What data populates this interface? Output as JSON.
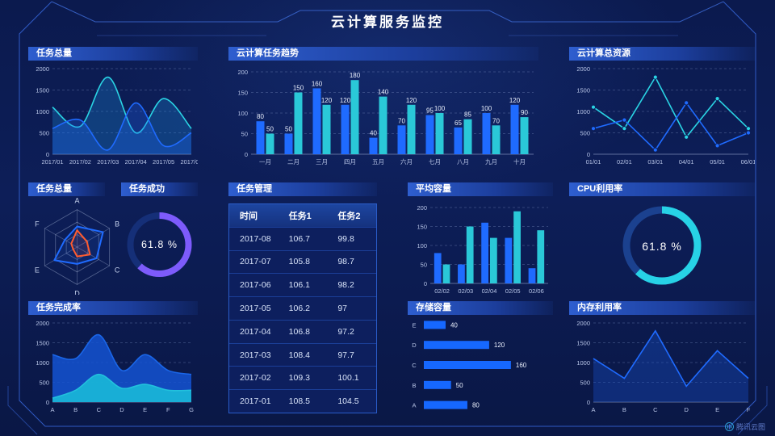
{
  "header": {
    "title": "云计算服务监控"
  },
  "watermark": {
    "text": "腾讯云图"
  },
  "colors": {
    "background": "#0b1a4e",
    "accent_blue": "#1f6bff",
    "accent_cyan": "#2ac8d8",
    "accent_purple": "#7d5bfb",
    "accent_orange": "#ff5b2e"
  },
  "table": {
    "title": "任务管理",
    "headers": [
      "时间",
      "任务1",
      "任务2"
    ],
    "rows": [
      [
        "2017-08",
        "106.7",
        "99.8"
      ],
      [
        "2017-07",
        "105.8",
        "98.7"
      ],
      [
        "2017-06",
        "106.1",
        "98.2"
      ],
      [
        "2017-05",
        "106.2",
        "97"
      ],
      [
        "2017-04",
        "106.8",
        "97.2"
      ],
      [
        "2017-03",
        "108.4",
        "97.7"
      ],
      [
        "2017-02",
        "109.3",
        "100.1"
      ],
      [
        "2017-01",
        "108.5",
        "104.5"
      ]
    ]
  },
  "chart_data": [
    {
      "id": "task_total_area",
      "type": "area",
      "title": "任务总量",
      "smooth": true,
      "x": [
        "2017/01",
        "2017/02",
        "2017/03",
        "2017/04",
        "2017/05",
        "2017/06"
      ],
      "ymax": 2000,
      "yticks": [
        0,
        500,
        1000,
        1500,
        2000
      ],
      "grid": true,
      "legend": "none",
      "series": [
        {
          "name": "series-cyan",
          "color": "#2ad4e4",
          "fill": "rgba(26,140,220,0.30)",
          "values": [
            1100,
            650,
            1800,
            500,
            1300,
            600
          ]
        },
        {
          "name": "series-blue",
          "color": "#1f6bff",
          "fill": "rgba(31,107,255,0.28)",
          "values": [
            600,
            800,
            100,
            1200,
            200,
            500
          ]
        }
      ]
    },
    {
      "id": "task_trend",
      "type": "bar",
      "title": "云计算任务趋势",
      "labels": true,
      "categories": [
        "一月",
        "二月",
        "三月",
        "四月",
        "五月",
        "六月",
        "七月",
        "八月",
        "九月",
        "十月"
      ],
      "ymax": 200,
      "yticks": [
        0,
        50,
        100,
        150,
        200
      ],
      "grid": true,
      "legend": "none",
      "series": [
        {
          "name": "series-blue",
          "color": "#1f6bff",
          "values": [
            80,
            50,
            160,
            120,
            40,
            70,
            95,
            65,
            100,
            120
          ]
        },
        {
          "name": "series-cyan",
          "color": "#2ac8d8",
          "values": [
            50,
            150,
            120,
            180,
            140,
            120,
            100,
            85,
            70,
            90
          ]
        }
      ]
    },
    {
      "id": "total_resources",
      "type": "line",
      "title": "云计算总资源",
      "markers": true,
      "x": [
        "01/01",
        "02/01",
        "03/01",
        "04/01",
        "05/01",
        "06/01"
      ],
      "ymax": 2000,
      "yticks": [
        0,
        500,
        1000,
        1500,
        2000
      ],
      "grid": true,
      "legend": "none",
      "series": [
        {
          "name": "series-cyan",
          "color": "#2ad4e4",
          "values": [
            1100,
            600,
            1800,
            400,
            1300,
            600
          ]
        },
        {
          "name": "series-blue",
          "color": "#1f6bff",
          "values": [
            600,
            800,
            100,
            1200,
            200,
            500
          ]
        }
      ]
    },
    {
      "id": "task_radar",
      "type": "radar",
      "title": "任务总量",
      "axes": [
        "A",
        "B",
        "C",
        "D",
        "E",
        "F"
      ],
      "max": 100,
      "series": [
        {
          "name": "series-blue",
          "color": "#1f6bff",
          "fill": "rgba(31,107,255,0.12)",
          "values": [
            55,
            80,
            60,
            45,
            70,
            38
          ]
        },
        {
          "name": "series-orange",
          "color": "#ff5b2e",
          "fill": "rgba(255,91,46,0.10)",
          "values": [
            45,
            30,
            40,
            25,
            12,
            18
          ]
        }
      ]
    },
    {
      "id": "task_success_donut",
      "type": "donut",
      "title": "任务成功",
      "value": 61.8,
      "label": "61.8 %",
      "color": "#7d5bfb",
      "track": "#152f78",
      "sw": 8,
      "r": 36
    },
    {
      "id": "avg_capacity",
      "type": "bar",
      "title": "平均容量",
      "labels": false,
      "categories": [
        "02/02",
        "02/03",
        "02/04",
        "02/05",
        "02/06"
      ],
      "ymax": 200,
      "yticks": [
        0,
        50,
        100,
        150,
        200
      ],
      "grid": true,
      "legend": "none",
      "series": [
        {
          "name": "series-blue",
          "color": "#1f6bff",
          "values": [
            80,
            50,
            160,
            120,
            40
          ]
        },
        {
          "name": "series-cyan",
          "color": "#2ac8d8",
          "values": [
            50,
            150,
            120,
            190,
            140
          ]
        }
      ]
    },
    {
      "id": "cpu_donut",
      "type": "donut",
      "title": "CPU利用率",
      "value": 61.8,
      "label": "61.8 %",
      "color": "#27d2e6",
      "track": "#1b418f",
      "sw": 9,
      "r": 44
    },
    {
      "id": "completion",
      "type": "area",
      "title": "任务完成率",
      "smooth": true,
      "x": [
        "A",
        "B",
        "C",
        "D",
        "E",
        "F",
        "G"
      ],
      "ymax": 2000,
      "yticks": [
        0,
        500,
        1000,
        1500,
        2000
      ],
      "grid": true,
      "legend": "none",
      "series": [
        {
          "name": "series-blue",
          "color": "#1a66e8",
          "fill": "rgba(20,84,210,0.85)",
          "values": [
            1200,
            1100,
            1700,
            800,
            1200,
            800,
            700
          ]
        },
        {
          "name": "series-cyan",
          "color": "#22c1dd",
          "fill": "rgba(25,185,216,0.90)",
          "values": [
            100,
            300,
            700,
            350,
            450,
            300,
            300
          ]
        }
      ]
    },
    {
      "id": "storage",
      "type": "hbar",
      "title": "存储容量",
      "categories": [
        "E",
        "D",
        "C",
        "B",
        "A"
      ],
      "values": [
        40,
        120,
        160,
        50,
        80
      ],
      "xmax": 175,
      "color": "#1668ff",
      "labels": true
    },
    {
      "id": "memory",
      "type": "line",
      "title": "内存利用率",
      "markers": false,
      "x": [
        "A",
        "B",
        "C",
        "D",
        "E",
        "F"
      ],
      "ymax": 2000,
      "yticks": [
        0,
        500,
        1000,
        1500,
        2000
      ],
      "grid": true,
      "legend": "none",
      "series": [
        {
          "name": "series-blue",
          "color": "#1f6bff",
          "fill": "rgba(23,80,200,0.38)",
          "values": [
            1100,
            600,
            1800,
            400,
            1300,
            600
          ]
        }
      ]
    }
  ]
}
